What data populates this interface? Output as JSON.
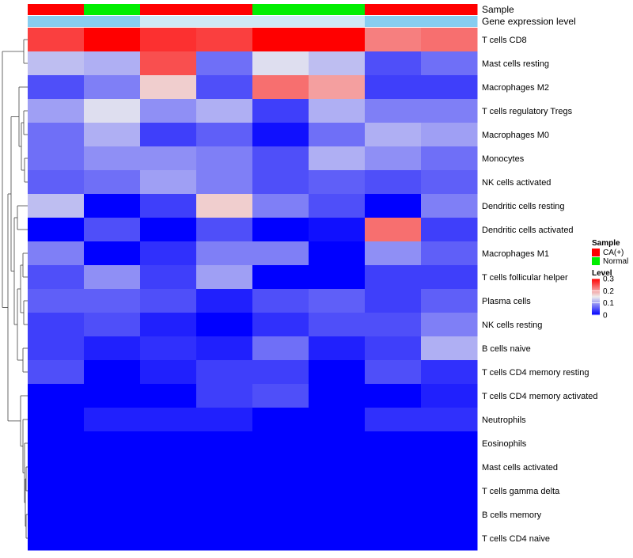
{
  "chart_data": {
    "type": "heatmap",
    "annotation_tracks": [
      {
        "name": "Sample",
        "values": [
          "CA(+)",
          "Normal",
          "CA(+)",
          "CA(+)",
          "Normal",
          "Normal",
          "CA(+)",
          "CA(+)"
        ]
      },
      {
        "name": "Gene expression level",
        "values": [
          "high",
          "high",
          "low",
          "low",
          "low",
          "low",
          "high",
          "high"
        ]
      }
    ],
    "rows": [
      "T cells CD8",
      "Mast cells resting",
      "Macrophages M2",
      "T cells regulatory  Tregs",
      "Macrophages M0",
      "Monocytes",
      "NK cells activated",
      "Dendritic cells resting",
      "Dendritic cells activated",
      "Macrophages M1",
      "T cells follicular helper",
      "Plasma cells",
      "NK cells resting",
      "B cells naive",
      "T cells CD4 memory resting",
      "T cells CD4 memory activated",
      "Neutrophils",
      "Eosinophils",
      "Mast cells activated",
      "T cells gamma delta",
      "B cells memory",
      "T cells CD4 naive"
    ],
    "values": [
      [
        0.26,
        0.3,
        0.27,
        0.26,
        0.3,
        0.3,
        0.22,
        0.23
      ],
      [
        0.12,
        0.11,
        0.25,
        0.07,
        0.14,
        0.12,
        0.05,
        0.07
      ],
      [
        0.05,
        0.08,
        0.17,
        0.05,
        0.23,
        0.2,
        0.04,
        0.04
      ],
      [
        0.1,
        0.14,
        0.09,
        0.11,
        0.04,
        0.11,
        0.08,
        0.08
      ],
      [
        0.07,
        0.11,
        0.04,
        0.06,
        0.01,
        0.07,
        0.11,
        0.1
      ],
      [
        0.07,
        0.09,
        0.09,
        0.08,
        0.05,
        0.11,
        0.09,
        0.07
      ],
      [
        0.06,
        0.07,
        0.1,
        0.08,
        0.05,
        0.06,
        0.05,
        0.06
      ],
      [
        0.12,
        0.0,
        0.04,
        0.17,
        0.08,
        0.05,
        0.0,
        0.08
      ],
      [
        0.0,
        0.05,
        0.0,
        0.05,
        0.0,
        0.01,
        0.23,
        0.04
      ],
      [
        0.08,
        0.0,
        0.03,
        0.08,
        0.08,
        0.0,
        0.09,
        0.06
      ],
      [
        0.05,
        0.09,
        0.04,
        0.1,
        0.0,
        0.0,
        0.04,
        0.04
      ],
      [
        0.06,
        0.06,
        0.05,
        0.02,
        0.05,
        0.06,
        0.04,
        0.06
      ],
      [
        0.04,
        0.05,
        0.02,
        0.0,
        0.03,
        0.05,
        0.05,
        0.08
      ],
      [
        0.04,
        0.02,
        0.03,
        0.02,
        0.07,
        0.02,
        0.04,
        0.11
      ],
      [
        0.05,
        0.0,
        0.02,
        0.04,
        0.04,
        0.0,
        0.05,
        0.03
      ],
      [
        0.0,
        0.0,
        0.0,
        0.04,
        0.05,
        0.0,
        0.0,
        0.02
      ],
      [
        0.0,
        0.02,
        0.02,
        0.02,
        0.0,
        0.0,
        0.03,
        0.03
      ],
      [
        0.0,
        0.0,
        0.0,
        0.0,
        0.0,
        0.0,
        0.0,
        0.0
      ],
      [
        0.0,
        0.0,
        0.0,
        0.0,
        0.0,
        0.0,
        0.0,
        0.0
      ],
      [
        0.0,
        0.0,
        0.0,
        0.0,
        0.0,
        0.0,
        0.0,
        0.0
      ],
      [
        0.0,
        0.0,
        0.0,
        0.0,
        0.0,
        0.0,
        0.0,
        0.0
      ],
      [
        0.0,
        0.0,
        0.0,
        0.0,
        0.0,
        0.0,
        0.0,
        0.0
      ]
    ],
    "color_scale": {
      "min": 0,
      "mid": 0.15,
      "max": 0.3,
      "low": "#0000ff",
      "mid_color": "#eeeeee",
      "high": "#ff0000"
    },
    "legend_sample": {
      "title": "Sample",
      "items": [
        {
          "label": "CA(+)",
          "color": "#ff0000"
        },
        {
          "label": "Normal",
          "color": "#00ee00"
        }
      ]
    },
    "legend_level": {
      "title": "Level",
      "ticks": [
        {
          "label": "0.3",
          "value": 0.3
        },
        {
          "label": "0.2",
          "value": 0.2
        },
        {
          "label": "0.1",
          "value": 0.1
        },
        {
          "label": "0",
          "value": 0
        }
      ]
    },
    "expression_colors": {
      "high": "#87cdf0",
      "low": "#cfe8f5"
    },
    "dendrogram": "row clustering tree (left)"
  }
}
